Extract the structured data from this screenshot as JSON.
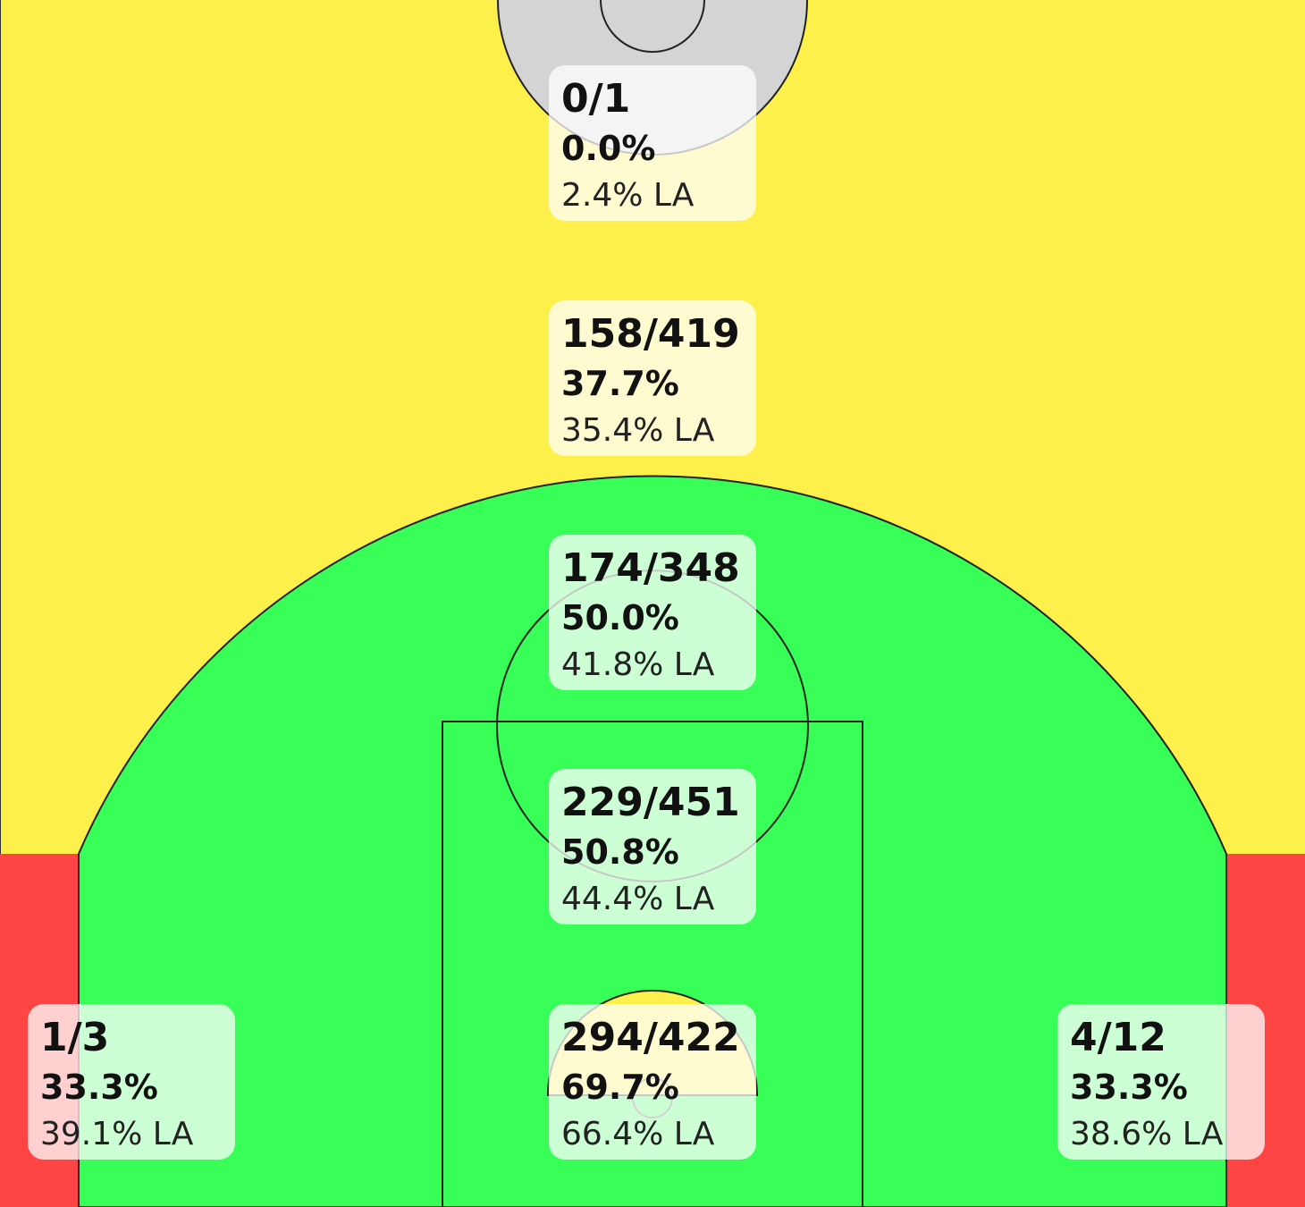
{
  "zones": [
    {
      "made_attempts": "0/1",
      "percentage": "0.0%",
      "league_average": "2.4% LA"
    },
    {
      "made_attempts": "158/419",
      "percentage": "37.7%",
      "league_average": "35.4% LA"
    },
    {
      "made_attempts": "174/348",
      "percentage": "50.0%",
      "league_average": "41.8% LA"
    },
    {
      "made_attempts": "229/451",
      "percentage": "50.8%",
      "league_average": "44.4% LA"
    },
    {
      "made_attempts": "294/422",
      "percentage": "69.7%",
      "league_average": "66.4% LA"
    },
    {
      "made_attempts": "1/3",
      "percentage": "33.3%",
      "league_average": "39.1% LA"
    },
    {
      "made_attempts": "4/12",
      "percentage": "33.3%",
      "league_average": "38.6% LA"
    }
  ]
}
